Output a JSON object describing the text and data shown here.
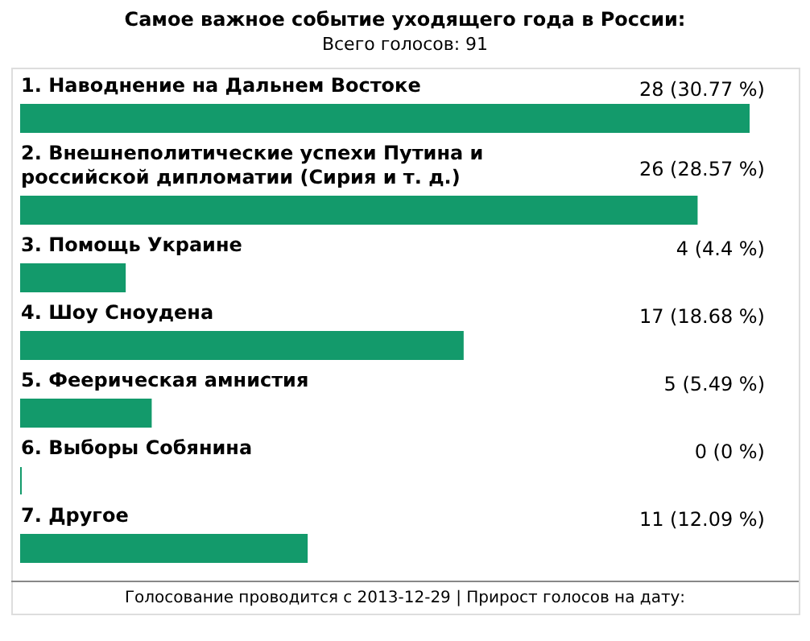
{
  "chart_data": {
    "type": "bar",
    "orientation": "horizontal",
    "title": "Самое важное событие уходящего года в России:",
    "subtitle": "Всего голосов: 91",
    "categories": [
      "1. Наводнение на Дальнем Востоке",
      "2. Внешнеполитические успехи Путина и российской дипломатии (Сирия и т. д.)",
      "3. Помощь Украине",
      "4. Шоу Сноудена",
      "5. Феерическая амнистия",
      "6. Выборы Собянина",
      "7. Другое"
    ],
    "values": [
      28,
      26,
      4,
      17,
      5,
      0,
      11
    ],
    "value_labels": [
      "28 (30.77 %)",
      "26 (28.57 %)",
      "4 (4.4 %)",
      "17 (18.68 %)",
      "5 (5.49 %)",
      "0 (0 %)",
      "11 (12.09 %)"
    ],
    "color": "#139a6b",
    "annotations": [
      "Голосование проводится с 2013-12-29  |  Прирост голосов на дату:"
    ]
  }
}
